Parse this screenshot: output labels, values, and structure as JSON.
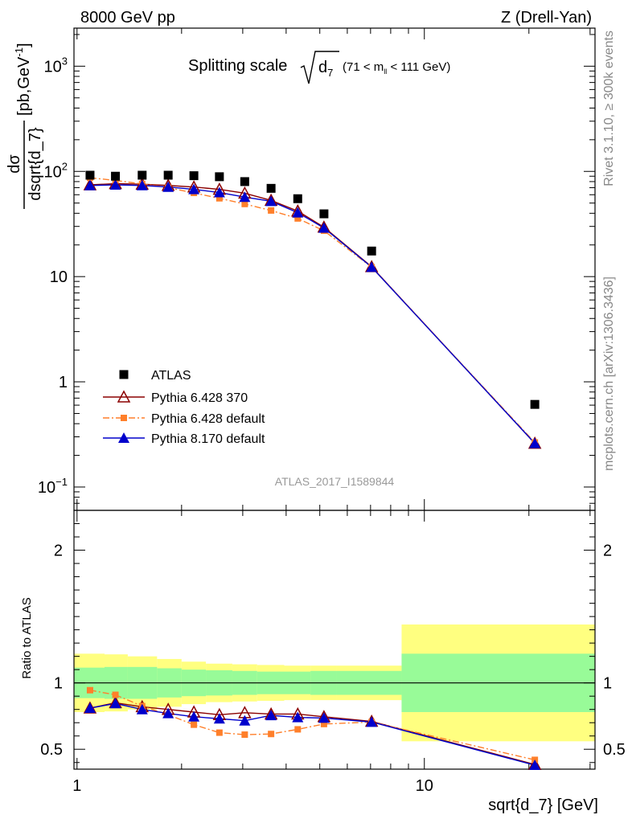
{
  "header": {
    "left": "8000 GeV pp",
    "right": "Z (Drell-Yan)"
  },
  "side_labels": {
    "rivet": "Rivet 3.1.10, ≥ 300k events",
    "mcplots": "mcplots.cern.ch [arXiv:1306.3436]"
  },
  "chart_data": {
    "type": "line",
    "title": "Splitting scale",
    "title_symbol": "d",
    "title_subscript": "7",
    "title_range": "(71 < m",
    "title_range_sub": "ll",
    "title_range_end": " < 111 GeV)",
    "analysis_id": "ATLAS_2017_I1589844",
    "xlabel": "sqrt{d_7} [GeV]",
    "x_scale": "log",
    "xlim": [
      0.98,
      31
    ],
    "x_tick_labels": [
      "1",
      "10"
    ],
    "main": {
      "ylabel_num": "dσ",
      "ylabel_den": "dsqrt{d_7}",
      "ylabel_units": "[pb,GeV",
      "ylabel_units_sup": "-1",
      "ylabel_units_end": "]",
      "y_scale": "log",
      "ylim": [
        0.06,
        2300
      ],
      "y_tick_labels": [
        {
          "base": "10",
          "exp": "3"
        },
        {
          "base": "10",
          "exp": "2"
        },
        {
          "base": "10",
          "exp": ""
        },
        {
          "base": "1",
          "exp": ""
        },
        {
          "base": "10",
          "exp": "−1"
        }
      ]
    },
    "ratio": {
      "ylabel": "Ratio to ATLAS",
      "ylim": [
        0.35,
        2.3
      ],
      "y_tick_labels": [
        "0.5",
        "1",
        "2"
      ]
    },
    "bin_edges": [
      0.98,
      1.2,
      1.4,
      1.7,
      2.0,
      2.35,
      2.8,
      3.3,
      3.95,
      4.7,
      5.6,
      8.6,
      31
    ],
    "series": [
      {
        "name": "ATLAS",
        "color": "#000000",
        "marker": "square",
        "x": [
          1.09,
          1.29,
          1.54,
          1.83,
          2.17,
          2.57,
          3.04,
          3.62,
          4.32,
          5.14,
          7.05,
          20.8
        ],
        "values": [
          92,
          90,
          92,
          92,
          91,
          89,
          80,
          69,
          55,
          39.5,
          17.5,
          0.61
        ],
        "band_inner": [
          0.115,
          0.12,
          0.12,
          0.11,
          0.1,
          0.095,
          0.09,
          0.085,
          0.085,
          0.09,
          0.09,
          0.22
        ],
        "band_outer": [
          0.22,
          0.215,
          0.2,
          0.18,
          0.16,
          0.145,
          0.14,
          0.135,
          0.13,
          0.13,
          0.13,
          0.44
        ]
      },
      {
        "name": "Pythia 6.428 370",
        "color": "#8b0000",
        "marker": "open-triangle",
        "line": "solid",
        "x": [
          1.09,
          1.29,
          1.54,
          1.83,
          2.17,
          2.57,
          3.04,
          3.62,
          4.32,
          5.14,
          7.05,
          20.8
        ],
        "values": [
          74.5,
          76.5,
          75.5,
          73.5,
          71,
          67.5,
          62,
          53,
          42,
          29.5,
          12.4,
          0.26
        ],
        "ratio": [
          0.81,
          0.85,
          0.82,
          0.8,
          0.78,
          0.76,
          0.775,
          0.765,
          0.765,
          0.745,
          0.71,
          0.385
        ]
      },
      {
        "name": "Pythia 6.428 default",
        "color": "#ff7f2a",
        "marker": "square",
        "line": "dashdot",
        "x": [
          1.09,
          1.29,
          1.54,
          1.83,
          2.17,
          2.57,
          3.04,
          3.62,
          4.32,
          5.14,
          7.05,
          20.8
        ],
        "values": [
          87,
          82,
          76,
          70,
          62.5,
          55.5,
          49,
          42.5,
          35.7,
          27.3,
          12.3,
          0.265
        ],
        "ratio": [
          0.945,
          0.91,
          0.825,
          0.76,
          0.685,
          0.625,
          0.61,
          0.615,
          0.65,
          0.69,
          0.705,
          0.42
        ]
      },
      {
        "name": "Pythia 8.170 default",
        "color": "#0000cc",
        "marker": "triangle",
        "line": "solid",
        "x": [
          1.09,
          1.29,
          1.54,
          1.83,
          2.17,
          2.57,
          3.04,
          3.62,
          4.32,
          5.14,
          7.05,
          20.8
        ],
        "values": [
          73.5,
          74.5,
          73.5,
          71,
          67.5,
          63,
          57,
          52,
          40.5,
          29,
          12.3,
          0.26
        ],
        "ratio": [
          0.81,
          0.845,
          0.8,
          0.77,
          0.745,
          0.73,
          0.715,
          0.755,
          0.74,
          0.735,
          0.705,
          0.38
        ]
      }
    ],
    "legend_position": "lower-left"
  }
}
